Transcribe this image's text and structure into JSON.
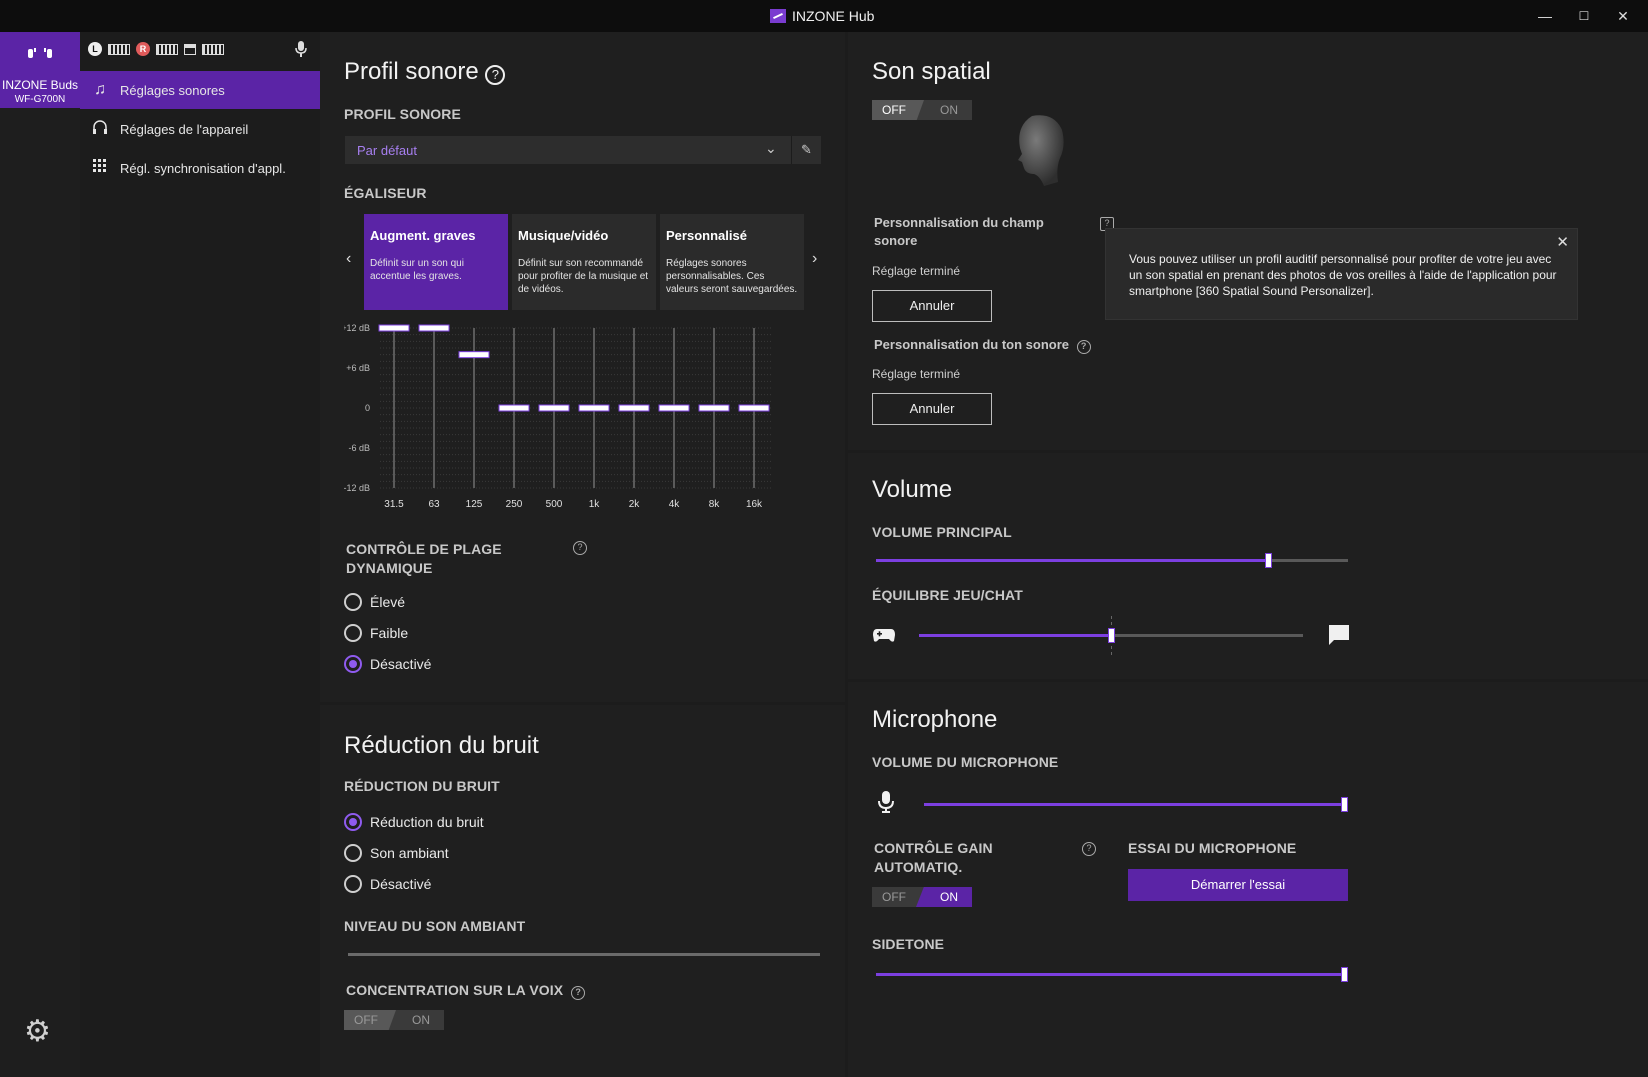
{
  "window": {
    "title": "INZONE Hub",
    "minimize": "—",
    "maximize": "☐",
    "close": "✕"
  },
  "device": {
    "name": "INZONE Buds",
    "model": "WF-G700N",
    "left_badge": "L",
    "right_badge": "R"
  },
  "nav": {
    "items": [
      {
        "label": "Réglages sonores",
        "icon": "music-note-icon"
      },
      {
        "label": "Réglages de l'appareil",
        "icon": "headphones-icon"
      },
      {
        "label": "Régl. synchronisation d'appl.",
        "icon": "grid-icon"
      }
    ]
  },
  "sound_profile": {
    "title": "Profil sonore",
    "profile_label": "PROFIL SONORE",
    "profile_value": "Par défaut",
    "eq_label": "ÉGALISEUR",
    "presets": [
      {
        "title": "Augment. graves",
        "desc": "Définit sur un son qui accentue les graves."
      },
      {
        "title": "Musique/vidéo",
        "desc": "Définit sur son recommandé pour profiter de la musique et de vidéos."
      },
      {
        "title": "Personnalisé",
        "desc": "Réglages sonores personnalisables. Ces valeurs seront sauvegardées."
      }
    ],
    "eq_y_labels": [
      "+12 dB",
      "+6 dB",
      "0",
      "-6 dB",
      "-12 dB"
    ],
    "eq_bands": [
      "31.5",
      "63",
      "125",
      "250",
      "500",
      "1k",
      "2k",
      "4k",
      "8k",
      "16k"
    ],
    "eq_values_db": [
      12,
      12,
      8,
      0,
      0,
      0,
      0,
      0,
      0,
      0
    ],
    "drc_label": "CONTRÔLE DE PLAGE DYNAMIQUE",
    "drc_options": [
      "Élevé",
      "Faible",
      "Désactivé"
    ],
    "drc_selected": 2
  },
  "noise": {
    "title": "Réduction du bruit",
    "label": "RÉDUCTION DU BRUIT",
    "options": [
      "Réduction du bruit",
      "Son ambiant",
      "Désactivé"
    ],
    "selected": 0,
    "ambient_label": "NIVEAU DU SON AMBIANT",
    "voice_label": "CONCENTRATION SUR LA VOIX",
    "voice_toggle": {
      "off": "OFF",
      "on": "ON",
      "state": "off"
    }
  },
  "spatial": {
    "title": "Son spatial",
    "toggle": {
      "off": "OFF",
      "on": "ON",
      "state": "off"
    },
    "field_label": "Personnalisation du champ sonore",
    "field_status": "Réglage terminé",
    "field_button": "Annuler",
    "tone_label": "Personnalisation du ton sonore",
    "tone_status": "Réglage terminé",
    "tone_button": "Annuler",
    "tooltip": "Vous pouvez utiliser un profil auditif personnalisé pour profiter de votre jeu avec un son spatial en prenant des photos de vos oreilles à l'aide de l'application pour smartphone [360 Spatial Sound Personalizer]."
  },
  "volume": {
    "title": "Volume",
    "main_label": "VOLUME PRINCIPAL",
    "main_level": 0.83,
    "balance_label": "ÉQUILIBRE JEU/CHAT",
    "balance_level": 0.5
  },
  "microphone": {
    "title": "Microphone",
    "volume_label": "VOLUME DU MICROPHONE",
    "volume_level": 1.0,
    "agc_label": "CONTRÔLE GAIN AUTOMATIQ.",
    "agc_toggle": {
      "off": "OFF",
      "on": "ON",
      "state": "on"
    },
    "test_label": "ESSAI DU MICROPHONE",
    "test_button": "Démarrer l'essai",
    "sidetone_label": "SIDETONE",
    "sidetone_level": 1.0
  },
  "colors": {
    "accent": "#5b24a6",
    "accent_light": "#7c3fe0",
    "background": "#1c1c1c"
  }
}
